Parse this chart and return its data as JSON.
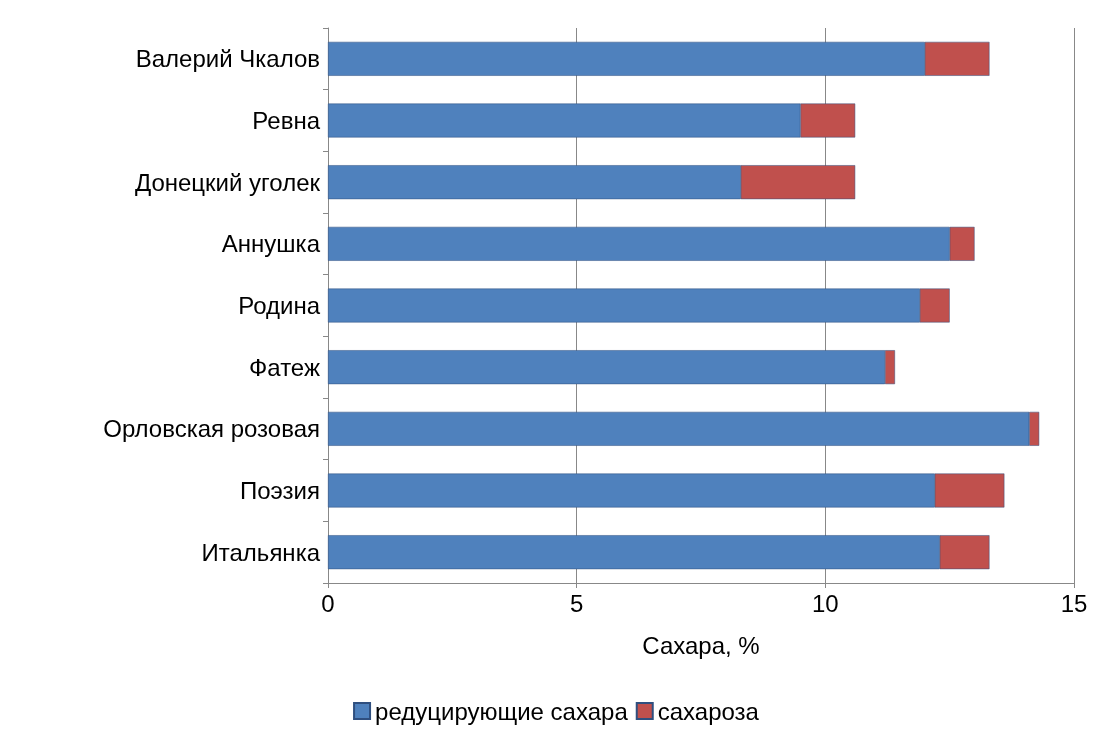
{
  "chart_data": {
    "type": "bar",
    "orientation": "horizontal",
    "stacked": true,
    "xlabel": "Сахара, %",
    "categories": [
      "Валерий Чкалов",
      "Ревна",
      "Донецкий уголек",
      "Аннушка",
      "Родина",
      "Фатеж",
      "Орловская розовая",
      "Поэзия",
      "Итальянка"
    ],
    "series": [
      {
        "name": "редуцирующие сахара",
        "color": "#4f81bd",
        "values": [
          12.0,
          9.5,
          8.3,
          12.5,
          11.9,
          11.2,
          14.1,
          12.2,
          12.3
        ]
      },
      {
        "name": "сахароза",
        "color": "#c0504d",
        "values": [
          1.3,
          1.1,
          2.3,
          0.5,
          0.6,
          0.2,
          0.2,
          1.4,
          1.0
        ]
      }
    ],
    "xlim": [
      0,
      15
    ],
    "xticks": [
      0,
      5,
      10,
      15
    ],
    "grid": "x",
    "legend": "bottom"
  }
}
